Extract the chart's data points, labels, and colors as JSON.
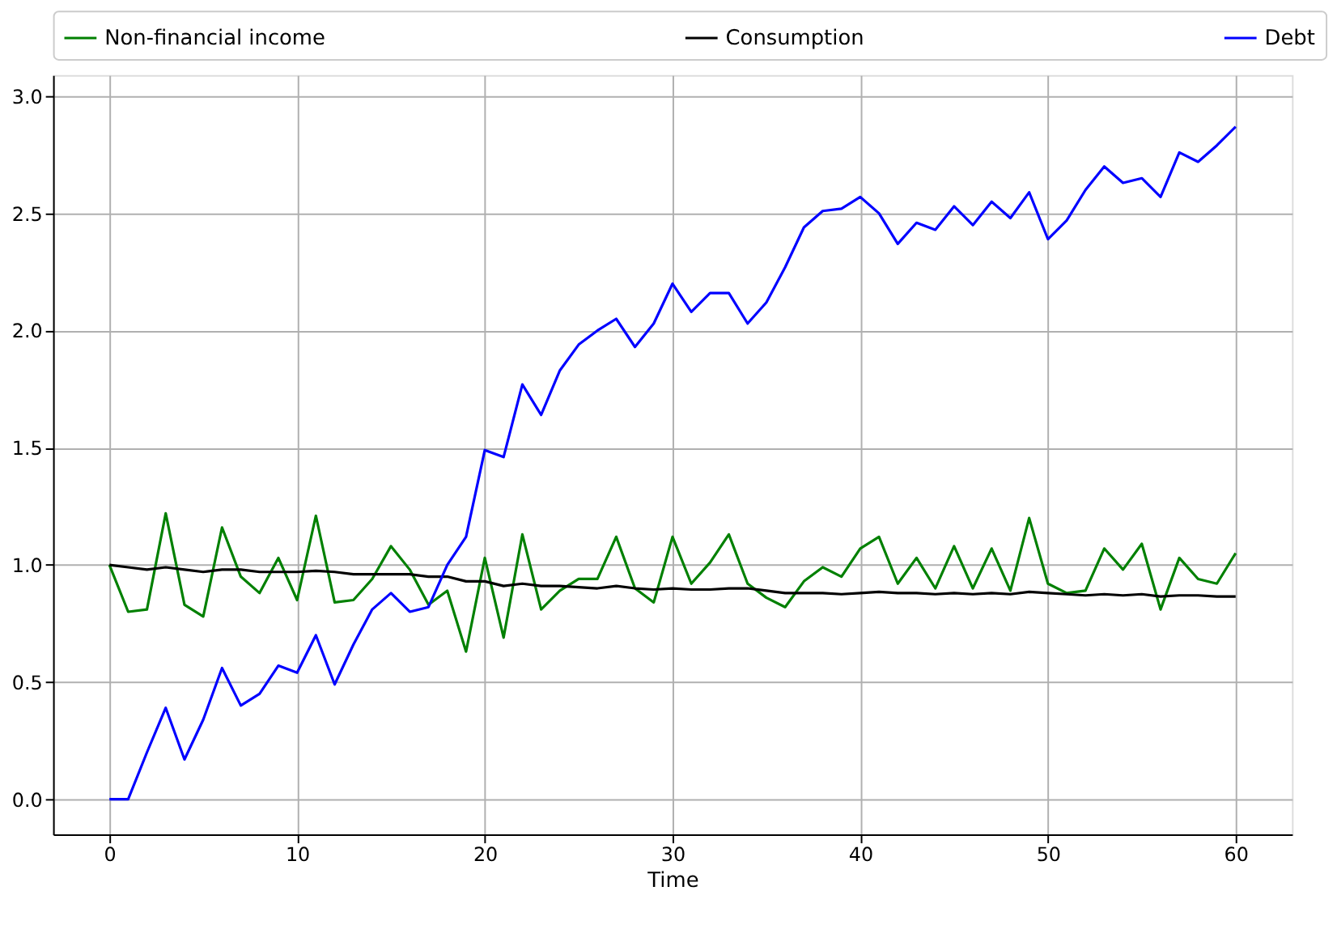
{
  "chart_data": {
    "type": "line",
    "xlabel": "Time",
    "x": [
      0,
      1,
      2,
      3,
      4,
      5,
      6,
      7,
      8,
      9,
      10,
      11,
      12,
      13,
      14,
      15,
      16,
      17,
      18,
      19,
      20,
      21,
      22,
      23,
      24,
      25,
      26,
      27,
      28,
      29,
      30,
      31,
      32,
      33,
      34,
      35,
      36,
      37,
      38,
      39,
      40,
      41,
      42,
      43,
      44,
      45,
      46,
      47,
      48,
      49,
      50,
      51,
      52,
      53,
      54,
      55,
      56,
      57,
      58,
      59,
      60
    ],
    "series": [
      {
        "name": "Non-financial income",
        "color": "#008000",
        "values": [
          1.0,
          0.8,
          0.81,
          1.22,
          0.83,
          0.78,
          1.16,
          0.95,
          0.88,
          1.03,
          0.85,
          1.21,
          0.84,
          0.85,
          0.94,
          1.08,
          0.98,
          0.83,
          0.89,
          0.63,
          1.03,
          0.69,
          1.13,
          0.81,
          0.89,
          0.94,
          0.94,
          1.12,
          0.9,
          0.84,
          1.12,
          0.92,
          1.01,
          1.13,
          0.92,
          0.86,
          0.82,
          0.93,
          0.99,
          0.95,
          1.07,
          1.12,
          0.92,
          1.03,
          0.9,
          1.08,
          0.9,
          1.07,
          0.89,
          1.2,
          0.92,
          0.88,
          0.89,
          1.07,
          0.98,
          1.09,
          0.81,
          1.03,
          0.94,
          0.92,
          1.05
        ]
      },
      {
        "name": "Consumption",
        "color": "#000000",
        "values": [
          1.0,
          0.99,
          0.98,
          0.99,
          0.98,
          0.97,
          0.98,
          0.98,
          0.97,
          0.97,
          0.97,
          0.975,
          0.97,
          0.96,
          0.96,
          0.96,
          0.96,
          0.95,
          0.95,
          0.93,
          0.93,
          0.91,
          0.92,
          0.91,
          0.91,
          0.905,
          0.9,
          0.91,
          0.9,
          0.895,
          0.9,
          0.895,
          0.895,
          0.9,
          0.9,
          0.89,
          0.88,
          0.88,
          0.88,
          0.875,
          0.88,
          0.885,
          0.88,
          0.88,
          0.875,
          0.88,
          0.875,
          0.88,
          0.875,
          0.885,
          0.88,
          0.875,
          0.87,
          0.875,
          0.87,
          0.875,
          0.865,
          0.87,
          0.87,
          0.865,
          0.865
        ]
      },
      {
        "name": "Debt",
        "color": "#0000ff",
        "values": [
          0.0,
          0.0,
          0.2,
          0.39,
          0.17,
          0.34,
          0.56,
          0.4,
          0.45,
          0.57,
          0.54,
          0.7,
          0.49,
          0.66,
          0.81,
          0.88,
          0.8,
          0.82,
          1.0,
          1.12,
          1.49,
          1.46,
          1.77,
          1.64,
          1.83,
          1.94,
          2.0,
          2.05,
          1.93,
          2.03,
          2.2,
          2.08,
          2.16,
          2.16,
          2.03,
          2.12,
          2.27,
          2.44,
          2.51,
          2.52,
          2.57,
          2.5,
          2.37,
          2.46,
          2.43,
          2.53,
          2.45,
          2.55,
          2.48,
          2.59,
          2.39,
          2.47,
          2.6,
          2.7,
          2.63,
          2.65,
          2.57,
          2.76,
          2.72,
          2.79,
          2.87
        ]
      }
    ],
    "xlim": [
      -3,
      63
    ],
    "xticks": [
      0,
      10,
      20,
      30,
      40,
      50,
      60
    ],
    "ylim": [
      -0.15,
      3.09
    ],
    "yticks": [
      {
        "value": 0,
        "label": "0.0"
      },
      {
        "value": 0.5,
        "label": "0.5"
      },
      {
        "value": 1,
        "label": "1.0"
      },
      {
        "value": 1.5,
        "label": "1.5"
      },
      {
        "value": 2,
        "label": "2.0"
      },
      {
        "value": 2.5,
        "label": "2.5"
      },
      {
        "value": 3,
        "label": "3.0"
      }
    ],
    "grid": true,
    "legend": "top",
    "marker": "none",
    "line_style": "solid"
  }
}
